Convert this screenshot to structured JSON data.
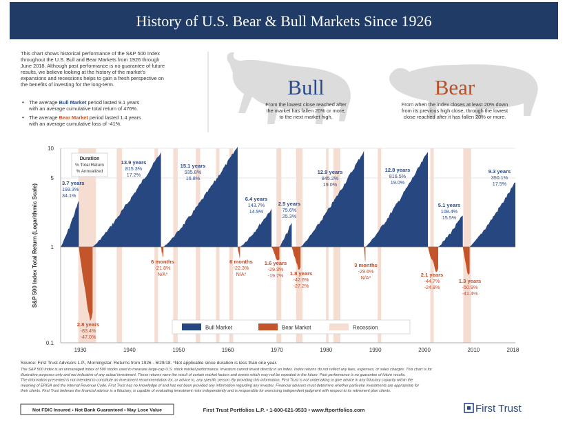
{
  "header": {
    "title": "History of U.S. Bear & Bull Markets Since 1926"
  },
  "intro": {
    "paragraph_lines": [
      "This chart shows historical performance of the S&P 500 Index",
      "throughout the U.S. Bull and Bear Markets from 1926 through",
      "June 2018. Although past performance is no guarantee of future",
      "results, we believe looking at the history of the market's",
      "expansions and recessions helps to gain a fresh perspective on",
      "the benefits of investing for the long-term."
    ],
    "bullets": [
      {
        "line1_pre": "The average ",
        "line1_em": "Bull Market",
        "line1_post": " period lasted 9.1 years",
        "line2": "with an average cumulative total return of 476%.",
        "em_color": "#2a4a8a"
      },
      {
        "line1_pre": "The average ",
        "line1_em": "Bear Market",
        "line1_post": " period lasted 1.4 years",
        "line2": "with an average cumulative loss of -41%.",
        "em_color": "#c8572a"
      }
    ]
  },
  "bull_panel": {
    "heading": "Bull",
    "color": "#2a4a8a",
    "desc": [
      "From the lowest close reached after",
      "the market has fallen 20% or more,",
      "to the next market high."
    ]
  },
  "bear_panel": {
    "heading": "Bear",
    "color": "#b8502a",
    "desc": [
      "From when the index closes at least 20% down",
      "from its previous high close, through the lowest",
      "close reached after it has fallen 20% or more."
    ]
  },
  "colors": {
    "bull": "#26477f",
    "bear": "#c4552a",
    "recession": "#f6ddd2",
    "header_bg": "#1f3b66",
    "label_bull": "#2a4a8a",
    "label_bear": "#c44a28"
  },
  "chart_data": {
    "type": "area",
    "title": "History of U.S. Bear & Bull Markets Since 1926",
    "ylabel": "S&P 500 Index Total Return (Logarithmic Scale)",
    "y_scale": "log",
    "ylim": [
      0.1,
      10
    ],
    "yticks": [
      "10",
      "5",
      "1",
      "0.1"
    ],
    "yticks_values": [
      10,
      5,
      1,
      0.1
    ],
    "xlim": [
      1926,
      2018.5
    ],
    "xticks": [
      "1930",
      "1940",
      "1950",
      "1960",
      "1970",
      "1980",
      "1990",
      "2000",
      "2010",
      "2018"
    ],
    "xticks_values": [
      1930,
      1940,
      1950,
      1960,
      1970,
      1980,
      1990,
      2000,
      2010,
      2018
    ],
    "key_box": [
      "Duration",
      "% Total Return",
      "% Annualized"
    ],
    "legend": [
      "Bull Market",
      "Bear Market",
      "Recession"
    ],
    "legend_position": "bottom-center",
    "recessions": [
      [
        1929.6,
        1933.2
      ],
      [
        1937.4,
        1938.5
      ],
      [
        1945.1,
        1945.8
      ],
      [
        1948.9,
        1949.8
      ],
      [
        1953.5,
        1954.4
      ],
      [
        1957.6,
        1958.3
      ],
      [
        1960.3,
        1961.1
      ],
      [
        1969.9,
        1970.9
      ],
      [
        1973.9,
        1975.2
      ],
      [
        1980.0,
        1980.5
      ],
      [
        1981.5,
        1982.9
      ],
      [
        1990.5,
        1991.2
      ],
      [
        2001.2,
        2001.9
      ],
      [
        2007.9,
        2009.5
      ]
    ],
    "markets": [
      {
        "type": "bull",
        "start": 1926.0,
        "end": 1929.7,
        "value": 2.93,
        "lines": [
          "3.7 years",
          "193.3%",
          "34.1%"
        ]
      },
      {
        "type": "bear",
        "start": 1929.7,
        "end": 1932.5,
        "value": 0.166,
        "lines": [
          "2.8 years",
          "-83.4%",
          "-47.0%"
        ]
      },
      {
        "type": "bull",
        "start": 1932.5,
        "end": 1946.4,
        "value": 9.15,
        "lines": [
          "13.9 years",
          "815.3%",
          "17.2%"
        ]
      },
      {
        "type": "bear",
        "start": 1946.4,
        "end": 1946.9,
        "value": 0.782,
        "lines": [
          "6 months",
          "-21.8%",
          "N/A*"
        ]
      },
      {
        "type": "bull",
        "start": 1946.9,
        "end": 1962.0,
        "value": 10.36,
        "lines": [
          "15.1 years",
          "935.8%",
          "16.8%"
        ]
      },
      {
        "type": "bear",
        "start": 1962.0,
        "end": 1962.5,
        "value": 0.777,
        "lines": [
          "6 months",
          "-22.3%",
          "N/A*"
        ]
      },
      {
        "type": "bull",
        "start": 1962.5,
        "end": 1968.9,
        "value": 2.44,
        "lines": [
          "6.4 years",
          "143.7%",
          "14.9%"
        ]
      },
      {
        "type": "bear",
        "start": 1968.9,
        "end": 1970.5,
        "value": 0.707,
        "lines": [
          "1.6 years",
          "-29.3%",
          "-19.7%"
        ]
      },
      {
        "type": "bull",
        "start": 1970.5,
        "end": 1973.0,
        "value": 1.76,
        "lines": [
          "2.5 years",
          "75.6%",
          "25.3%"
        ]
      },
      {
        "type": "bear",
        "start": 1973.0,
        "end": 1974.8,
        "value": 0.574,
        "lines": [
          "1.8 years",
          "-42.6%",
          "-27.2%"
        ]
      },
      {
        "type": "bull",
        "start": 1974.8,
        "end": 1987.7,
        "value": 9.45,
        "lines": [
          "12.9 years",
          "845.2%",
          "19.0%"
        ]
      },
      {
        "type": "bear",
        "start": 1987.7,
        "end": 1988.0,
        "value": 0.704,
        "lines": [
          "3 months",
          "-29.6%",
          "N/A*"
        ]
      },
      {
        "type": "bull",
        "start": 1988.0,
        "end": 2000.7,
        "value": 9.17,
        "lines": [
          "12.8 years",
          "816.5%",
          "19.0%"
        ]
      },
      {
        "type": "bear",
        "start": 2000.7,
        "end": 2002.8,
        "value": 0.553,
        "lines": [
          "2.1 years",
          "-44.7%",
          "-24.8%"
        ]
      },
      {
        "type": "bull",
        "start": 2002.8,
        "end": 2007.8,
        "value": 2.08,
        "lines": [
          "5.1 years",
          "108.4%",
          "15.5%"
        ]
      },
      {
        "type": "bear",
        "start": 2007.8,
        "end": 2009.2,
        "value": 0.491,
        "lines": [
          "1.3 years",
          "-50.9%",
          "-41.4%"
        ]
      },
      {
        "type": "bull",
        "start": 2009.2,
        "end": 2018.5,
        "value": 4.5,
        "lines": [
          "9.3 years",
          "350.1%",
          "17.5%"
        ]
      }
    ]
  },
  "footer": {
    "source": "Source: First Trust Advisors L.P., Morningstar. Returns from 1926 - 6/29/18. *Not applicable since duration is less than one year.",
    "disclaimer_lines": [
      "The S&P 500 Index is an unmanaged index of 500 stocks used to measure large-cap U.S. stock market performance. Investors cannot invest directly in an index. Index returns do not reflect any fees, expenses, or sales charges. This chart is for",
      "illustrative purposes only and not indicative of any actual investment. These returns were the result of certain market factors and events which may not be repeated in the future. Past performance is no guarantee of future results.",
      "The information presented is not intended to constitute an investment recommendation for, or advice to, any specific person. By providing this information, First Trust is not undertaking to give advice in any fiduciary capacity within the",
      "meaning of ERISA and the Internal Revenue Code. First Trust has no knowledge of and has not been provided any information regarding any investor. Financial advisors must determine whether particular investments are appropriate for",
      "their clients. First Trust believes the financial advisor is a fiduciary, is capable of evaluating investment risks independently and is responsible for exercising independent judgment with respect to its retirement plan clients."
    ],
    "badge": "Not FDIC Insured • Not Bank Guaranteed • May Lose Value",
    "contact": "First Trust Portfolios L.P. • 1-800-621-9533 • www.ftportfolios.com",
    "logo_text": "First Trust"
  }
}
